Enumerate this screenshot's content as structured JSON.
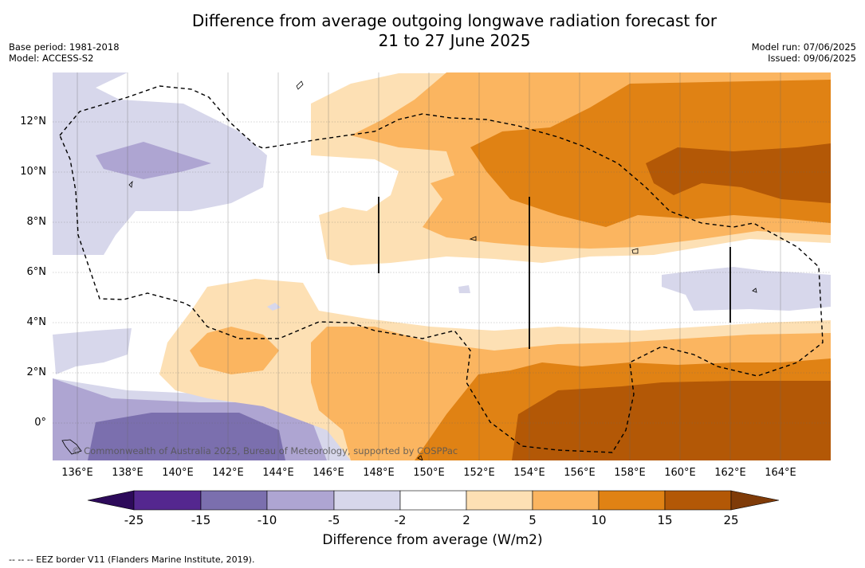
{
  "title_line1": "Difference from average outgoing longwave radiation forecast for",
  "title_line2": "21 to 27 June 2025",
  "meta_left": {
    "line1": "Base period: 1981-2018",
    "line2": "Model: ACCESS-S2"
  },
  "meta_right": {
    "line1": "Model run: 07/06/2025",
    "line2": "Issued: 09/06/2025"
  },
  "lat_labels": [
    "12°N",
    "10°N",
    "8°N",
    "6°N",
    "4°N",
    "2°N",
    "0°"
  ],
  "lon_labels": [
    "136°E",
    "138°E",
    "140°E",
    "142°E",
    "144°E",
    "146°E",
    "148°E",
    "150°E",
    "152°E",
    "154°E",
    "156°E",
    "158°E",
    "160°E",
    "162°E",
    "164°E"
  ],
  "copyright": "© Commonwealth of Australia 2025, Bureau of Meteorology, supported by COSPPac",
  "colorbar": {
    "labels": [
      "-25",
      "-15",
      "-10",
      "-5",
      "-2",
      "2",
      "5",
      "10",
      "15",
      "25"
    ],
    "colors": [
      "#2d0a5a",
      "#54278f",
      "#7b6fae",
      "#aea5d2",
      "#d7d7eb",
      "#ffffff",
      "#fde0b4",
      "#fbb560",
      "#e08214",
      "#b35806",
      "#7f3b08"
    ],
    "title": "Difference from average (W/m2)"
  },
  "footnote": "--  --  -- EEZ border V11 (Flanders Marine Institute, 2019)."
}
